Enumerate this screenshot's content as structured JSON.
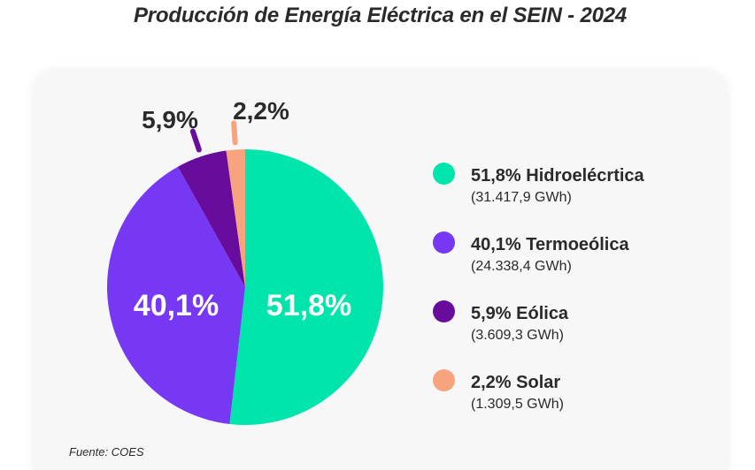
{
  "title": "Producción de Energía Eléctrica en el SEIN - 2024",
  "source": "Fuente: COES",
  "chart_data": {
    "type": "pie",
    "title": "Producción de Energía Eléctrica en el SEIN - 2024",
    "slices": [
      {
        "label": "51,8% Hidroelécrtica",
        "share": 51.8,
        "percent_label": "51,8%",
        "value_label": "(31.417,9 GWh)",
        "value_gwh": 31417.9,
        "color": "#00e5ab"
      },
      {
        "label": "40,1% Termoeólica",
        "share": 40.1,
        "percent_label": "40,1%",
        "value_label": "(24.338,4 GWh)",
        "value_gwh": 24338.4,
        "color": "#7638f2"
      },
      {
        "label": "5,9% Eólica",
        "share": 5.9,
        "percent_label": "5,9%",
        "value_label": "(3.609,3 GWh)",
        "value_gwh": 3609.3,
        "color": "#680c9e"
      },
      {
        "label": "2,2% Solar",
        "share": 2.2,
        "percent_label": "2,2%",
        "value_label": "(1.309,5 GWh)",
        "value_gwh": 1309.5,
        "color": "#f7a37e"
      }
    ],
    "legend_position": "right"
  }
}
